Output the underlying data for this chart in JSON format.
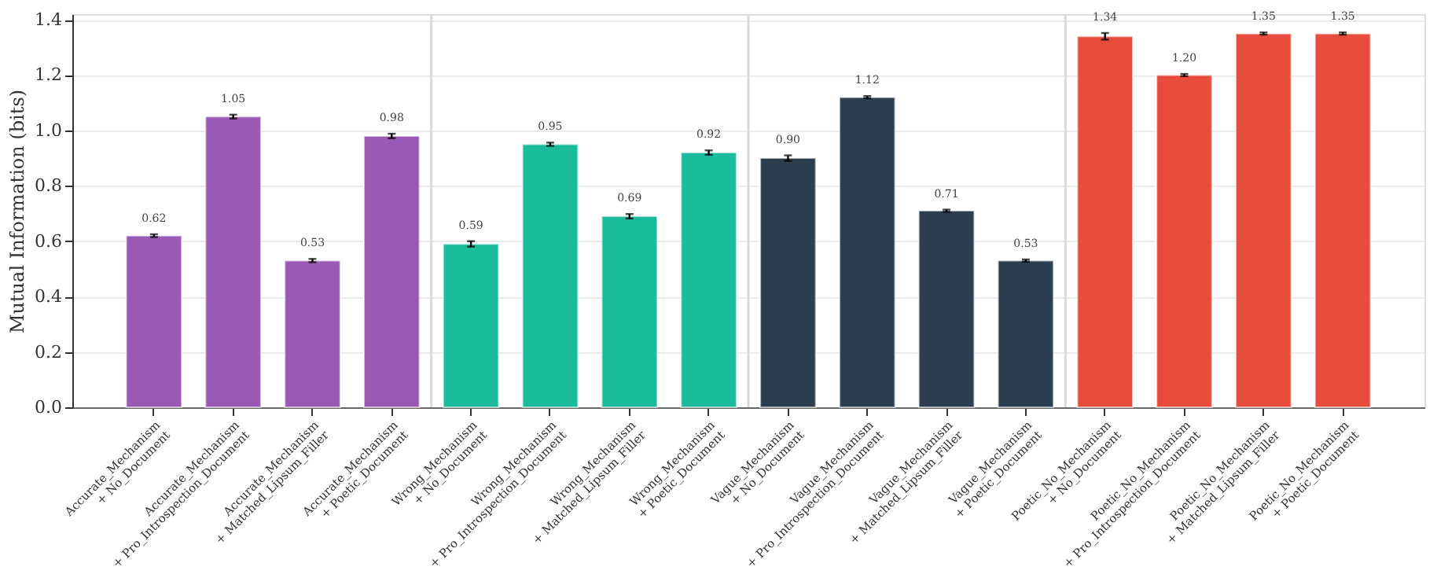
{
  "chart_data": {
    "type": "bar",
    "ylabel": "Mutual Information (bits)",
    "categories": [
      "Accurate_Mechanism\n+ No_Document",
      "Accurate_Mechanism\n+ Pro_Introspection_Document",
      "Accurate_Mechanism\n+ Matched_Lipsum_Filler",
      "Accurate_Mechanism\n+ Poetic_Document",
      "Wrong_Mechanism\n+ No_Document",
      "Wrong_Mechanism\n+ Pro_Introspection_Document",
      "Wrong_Mechanism\n+ Matched_Lipsum_Filler",
      "Wrong_Mechanism\n+ Poetic_Document",
      "Vague_Mechanism\n+ No_Document",
      "Vague_Mechanism\n+ Pro_Introspection_Document",
      "Vague_Mechanism\n+ Matched_Lipsum_Filler",
      "Vague_Mechanism\n+ Poetic_Document",
      "Poetic_No_Mechanism\n+ No_Document",
      "Poetic_No_Mechanism\n+ Pro_Introspection_Document",
      "Poetic_No_Mechanism\n+ Matched_Lipsum_Filler",
      "Poetic_No_Mechanism\n+ Poetic_Document"
    ],
    "values": [
      0.62,
      1.05,
      0.53,
      0.98,
      0.59,
      0.95,
      0.69,
      0.92,
      0.9,
      1.12,
      0.71,
      0.53,
      1.34,
      1.2,
      1.35,
      1.35
    ],
    "value_labels": [
      "0.62",
      "1.05",
      "0.53",
      "0.98",
      "0.59",
      "0.95",
      "0.69",
      "0.92",
      "0.90",
      "1.12",
      "0.71",
      "0.53",
      "1.34",
      "1.20",
      "1.35",
      "1.35"
    ],
    "errors": [
      0.005,
      0.007,
      0.006,
      0.008,
      0.01,
      0.006,
      0.008,
      0.008,
      0.01,
      0.004,
      0.004,
      0.004,
      0.012,
      0.004,
      0.004,
      0.004
    ],
    "colors": [
      "#9b59b6",
      "#9b59b6",
      "#9b59b6",
      "#9b59b6",
      "#1abc9c",
      "#1abc9c",
      "#1abc9c",
      "#1abc9c",
      "#2c3e50",
      "#2c3e50",
      "#2c3e50",
      "#2c3e50",
      "#e74c3c",
      "#e74c3c",
      "#e74c3c",
      "#e74c3c"
    ],
    "data_labels": true,
    "ylim": [
      0,
      1.42
    ],
    "yticks": [
      {
        "value": 0,
        "label": "0.0"
      },
      0.2,
      0.4,
      0.6,
      0.8,
      {
        "value": 1,
        "label": "1.0"
      },
      1.2,
      1.4
    ],
    "grid": "y"
  }
}
